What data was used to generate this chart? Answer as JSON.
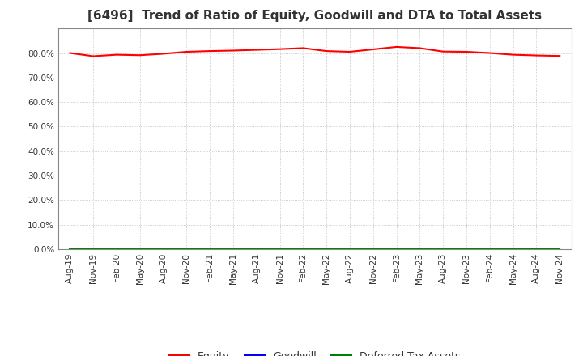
{
  "title": "[6496]  Trend of Ratio of Equity, Goodwill and DTA to Total Assets",
  "x_labels": [
    "Aug-19",
    "Nov-19",
    "Feb-20",
    "May-20",
    "Aug-20",
    "Nov-20",
    "Feb-21",
    "May-21",
    "Aug-21",
    "Nov-21",
    "Feb-22",
    "May-22",
    "Aug-22",
    "Nov-22",
    "Feb-23",
    "May-23",
    "Aug-23",
    "Nov-23",
    "Feb-24",
    "May-24",
    "Aug-24",
    "Nov-24"
  ],
  "equity": [
    0.8,
    0.787,
    0.793,
    0.791,
    0.797,
    0.805,
    0.808,
    0.81,
    0.813,
    0.816,
    0.82,
    0.808,
    0.805,
    0.815,
    0.825,
    0.82,
    0.806,
    0.805,
    0.8,
    0.793,
    0.79,
    0.788
  ],
  "goodwill": [
    0.0,
    0.0,
    0.0,
    0.0,
    0.0,
    0.0,
    0.0,
    0.0,
    0.0,
    0.0,
    0.0,
    0.0,
    0.0,
    0.0,
    0.0,
    0.0,
    0.0,
    0.0,
    0.0,
    0.0,
    0.0,
    0.0
  ],
  "dta": [
    0.0,
    0.0,
    0.0,
    0.0,
    0.0,
    0.0,
    0.0,
    0.0,
    0.0,
    0.0,
    0.0,
    0.0,
    0.0,
    0.0,
    0.0,
    0.0,
    0.0,
    0.0,
    0.0,
    0.0,
    0.0,
    0.0
  ],
  "equity_color": "#FF0000",
  "goodwill_color": "#0000FF",
  "dta_color": "#008000",
  "ylim": [
    0.0,
    0.9
  ],
  "yticks": [
    0.0,
    0.1,
    0.2,
    0.3,
    0.4,
    0.5,
    0.6,
    0.7,
    0.8
  ],
  "background_color": "#FFFFFF",
  "plot_bg_color": "#FFFFFF",
  "grid_color": "#BBBBBB",
  "title_fontsize": 11,
  "tick_fontsize": 7.5,
  "legend_labels": [
    "Equity",
    "Goodwill",
    "Deferred Tax Assets"
  ],
  "title_color": "#333333"
}
